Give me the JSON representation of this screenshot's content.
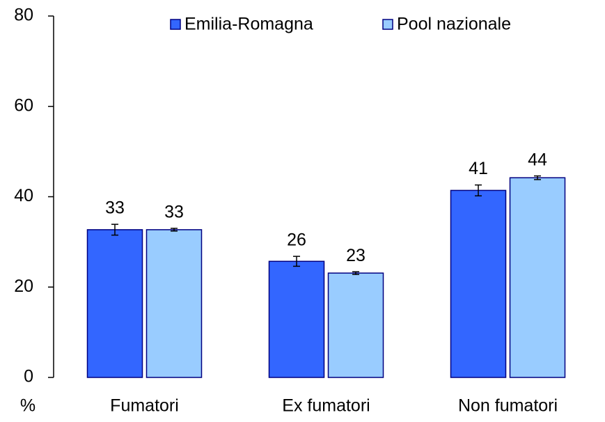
{
  "chart_data": {
    "type": "bar",
    "y_label": "%",
    "categories": [
      "Fumatori",
      "Ex fumatori",
      "Non fumatori"
    ],
    "series": [
      {
        "name": "Emilia-Romagna",
        "color": "#3366ff",
        "values": [
          32.7,
          25.7,
          41.4
        ],
        "value_labels": [
          "33",
          "26",
          "41"
        ],
        "errors": [
          1.2,
          1.1,
          1.2
        ]
      },
      {
        "name": "Pool nazionale",
        "color": "#99ccff",
        "values": [
          32.7,
          23.1,
          44.2
        ],
        "value_labels": [
          "33",
          "23",
          "44"
        ],
        "errors": [
          0.3,
          0.3,
          0.4
        ]
      }
    ],
    "ylim": [
      0,
      80
    ],
    "yticks": [
      0,
      20,
      40,
      60,
      80
    ],
    "grid": false
  }
}
